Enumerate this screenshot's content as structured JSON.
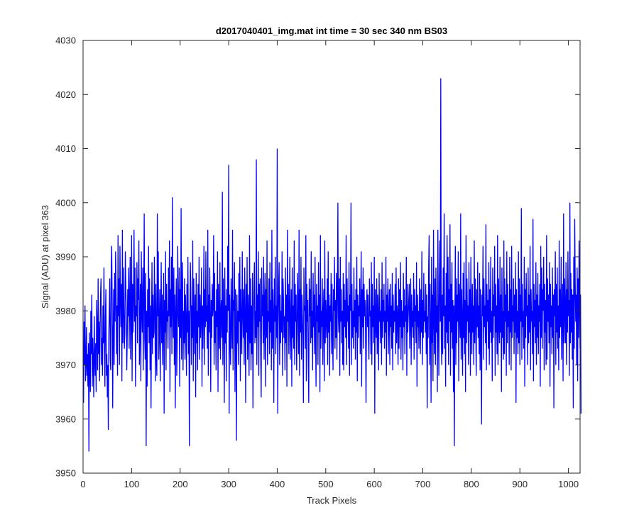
{
  "chart_data": {
    "type": "line",
    "title": "d2017040401_img.mat int time = 30 sec  340 nm BS03",
    "xlabel": "Track Pixels",
    "ylabel": "Signal (ADU) at pixel 363",
    "xlim": [
      0,
      1024
    ],
    "ylim": [
      3950,
      4030
    ],
    "xticks": [
      0,
      100,
      200,
      300,
      400,
      500,
      600,
      700,
      800,
      900,
      1000
    ],
    "yticks": [
      3950,
      3960,
      3970,
      3980,
      3990,
      4000,
      4010,
      4020,
      4030
    ],
    "grid": false,
    "series": [
      {
        "color": "#0000ff",
        "x_start": 1,
        "x_step": 1,
        "values": [
          3963,
          3978,
          3970,
          3981,
          3967,
          3970,
          3977,
          3968,
          3972,
          3966,
          3974,
          3954,
          3976,
          3969,
          3965,
          3980,
          3972,
          3983,
          3966,
          3975,
          3970,
          3964,
          3979,
          3971,
          3968,
          3974,
          3965,
          3982,
          3977,
          3969,
          3986,
          3972,
          3978,
          3967,
          3976,
          3983,
          3986,
          3970,
          3975,
          3968,
          3981,
          3974,
          3988,
          3973,
          3966,
          3979,
          3984,
          3968,
          3972,
          3964,
          3970,
          3958,
          3975,
          3980,
          3986,
          3971,
          3969,
          3988,
          3992,
          3981,
          3962,
          3975,
          3984,
          3970,
          3987,
          3978,
          3991,
          3985,
          3972,
          3981,
          3968,
          3994,
          3979,
          3986,
          3970,
          3992,
          3983,
          3977,
          3985,
          3967,
          3995,
          3974,
          3988,
          3981,
          3973,
          3976,
          3991,
          3985,
          3980,
          3969,
          3975,
          3984,
          3979,
          3988,
          3973,
          3982,
          3990,
          3971,
          3978,
          3994,
          3967,
          3985,
          3976,
          3983,
          3995,
          3978,
          3988,
          3966,
          3981,
          3979,
          3989,
          3974,
          3986,
          3982,
          3993,
          3970,
          3977,
          3985,
          3967,
          3991,
          3980,
          3976,
          3988,
          3969,
          3983,
          3998,
          3975,
          3971,
          3987,
          3955,
          3980,
          3966,
          3984,
          3977,
          3992,
          3974,
          3986,
          3969,
          3981,
          3962,
          3978,
          3989,
          3972,
          3983,
          3975,
          3976,
          3990,
          3980,
          3967,
          3985,
          3973,
          3968,
          3998,
          3979,
          3991,
          3971,
          3976,
          3984,
          3967,
          3980,
          3989,
          3974,
          3983,
          3970,
          3978,
          3987,
          3961,
          3982,
          3976,
          3991,
          3969,
          3985,
          3978,
          3980,
          3973,
          3988,
          3979,
          3993,
          3965,
          3984,
          3977,
          3990,
          3972,
          4001,
          3981,
          3975,
          3988,
          3970,
          3983,
          3962,
          3979,
          3986,
          3968,
          3974,
          3992,
          3980,
          3977,
          3988,
          3966,
          3984,
          3975,
          3999,
          3971,
          3982,
          3989,
          3969,
          3980,
          3974,
          3986,
          3971,
          3983,
          3978,
          3968,
          3985,
          3976,
          3990,
          3972,
          3980,
          3955,
          3978,
          3989,
          3984,
          3970,
          3981,
          3975,
          3993,
          3967,
          3986,
          3979,
          3972,
          3983,
          3964,
          3987,
          3974,
          3980,
          3969,
          3985,
          3977,
          3990,
          3971,
          3983,
          3975,
          3979,
          3988,
          3966,
          3981,
          3973,
          3980,
          3992,
          3970,
          3984,
          3977,
          3991,
          3978,
          3981,
          3973,
          3995,
          3968,
          3983,
          3976,
          3988,
          3979,
          3965,
          3982,
          3975,
          3985,
          3979,
          3981,
          3994,
          3970,
          3987,
          3974,
          3980,
          3969,
          3984,
          3977,
          3991,
          3965,
          3985,
          3978,
          3973,
          3989,
          3971,
          3980,
          3982,
          3975,
          4002,
          3970,
          3986,
          3979,
          3963,
          3988,
          3974,
          3981,
          3967,
          3984,
          3976,
          3992,
          3980,
          4007,
          3961,
          3983,
          3975,
          3970,
          3986,
          3978,
          3973,
          3995,
          3969,
          3982,
          3980,
          3989,
          3965,
          3984,
          3976,
          3956,
          3983,
          3974,
          3980,
          3970,
          3987,
          3978,
          3990,
          3967,
          3984,
          3977,
          3972,
          3991,
          3980,
          3975,
          3984,
          3970,
          3988,
          3979,
          3963,
          3985,
          3976,
          3990,
          3971,
          3983,
          3979,
          3968,
          3994,
          3974,
          3986,
          3969,
          3981,
          3972,
          3987,
          3962,
          3978,
          3984,
          3989,
          3974,
          3980,
          3975,
          4008,
          3970,
          3983,
          3977,
          3991,
          3968,
          3985,
          3978,
          3986,
          3972,
          3964,
          3988,
          3979,
          3983,
          3974,
          3990,
          3971,
          3981,
          3987,
          3966,
          3984,
          3975,
          3993,
          3970,
          3980,
          3978,
          3986,
          3972,
          3989,
          3976,
          3982,
          3969,
          3995,
          3973,
          3984,
          3979,
          3963,
          3986,
          3978,
          3990,
          3972,
          3981,
          3975,
          4010,
          3961,
          3977,
          3985,
          3989,
          3970,
          3983,
          3974,
          3980,
          3976,
          3991,
          3968,
          3986,
          3982,
          3975,
          3979,
          3969,
          3988,
          3974,
          3983,
          3966,
          3995,
          3978,
          3985,
          3972,
          3980,
          3990,
          3971,
          3977,
          3984,
          3966,
          3988,
          3975,
          3981,
          3973,
          3993,
          3970,
          3985,
          3978,
          3983,
          3969,
          3976,
          3987,
          3980,
          3972,
          3995,
          3968,
          3984,
          3976,
          3990,
          3971,
          3983,
          3979,
          3975,
          3963,
          3988,
          3980,
          3981,
          3973,
          3994,
          3967,
          3985,
          3978,
          3982,
          3970,
          3963,
          3986,
          3979,
          3984,
          3974,
          3991,
          3975,
          3980,
          3969,
          3987,
          3977,
          3983,
          3972,
          3990,
          3975,
          3966,
          3985,
          3978,
          3981,
          3970,
          3989,
          3976,
          3983,
          3965,
          3994,
          3973,
          3980,
          3977,
          3986,
          3970,
          3979,
          3984,
          3967,
          3993,
          3974,
          3982,
          3978,
          3975,
          3986,
          3970,
          3991,
          3976,
          3983,
          3968,
          3981,
          3978,
          3987,
          3972,
          3985,
          3976,
          3969,
          3984,
          3980,
          3990,
          3973,
          3982,
          3975,
          3987,
          3971,
          3983,
          4000,
          3979,
          3976,
          3986,
          3968,
          3990,
          3978,
          3984,
          3974,
          3980,
          3970,
          3987,
          3969,
          3985,
          3977,
          3982,
          3975,
          3994,
          3970,
          3986,
          3978,
          3981,
          3973,
          3989,
          3968,
          3983,
          3980,
          4000,
          3970,
          3985,
          3975,
          3980,
          3973,
          3988,
          3977,
          3982,
          3971,
          3984,
          3976,
          3990,
          3967,
          3983,
          3975,
          3981,
          3979,
          3986,
          3972,
          3980,
          3991,
          3966,
          3984,
          3977,
          3988,
          3973,
          3985,
          3979,
          3982,
          3976,
          3963,
          3981,
          3984,
          3977,
          3983,
          3975,
          3971,
          3986,
          3979,
          3980,
          3972,
          3989,
          3970,
          3985,
          3977,
          3981,
          3974,
          3990,
          3961,
          3984,
          3978,
          3975,
          3986,
          3972,
          3983,
          3979,
          3969,
          3987,
          3978,
          3980,
          3974,
          3984,
          3970,
          3989,
          3975,
          3982,
          3978,
          3985,
          3973,
          3980,
          3976,
          3990,
          3968,
          3983,
          3978,
          3986,
          3972,
          3979,
          3984,
          3970,
          3985,
          3977,
          3981,
          3973,
          3987,
          3969,
          3983,
          3976,
          3980,
          3978,
          3985,
          3972,
          3988,
          3974,
          3981,
          3979,
          3970,
          3986,
          3973,
          3984,
          3977,
          3989,
          3971,
          3982,
          3975,
          3980,
          3969,
          3987,
          3977,
          3984,
          3972,
          3981,
          3978,
          3990,
          3968,
          3985,
          3976,
          3979,
          3982,
          3985,
          3973,
          3978,
          3986,
          3970,
          3983,
          3977,
          3980,
          3975,
          3987,
          3971,
          3984,
          3978,
          3981,
          3974,
          3989,
          3966,
          3983,
          3977,
          3980,
          3973,
          3986,
          3979,
          3972,
          3984,
          3976,
          3991,
          3970,
          3982,
          3975,
          3987,
          3978,
          3980,
          3976,
          3985,
          3972,
          3983,
          3962,
          3979,
          3975,
          3988,
          3994,
          3970,
          3985,
          3977,
          3963,
          3990,
          3974,
          3983,
          3967,
          3995,
          3979,
          3972,
          3986,
          3970,
          3988,
          3976,
          3981,
          3965,
          3995,
          3979,
          3968,
          3985,
          3993,
          3978,
          4023,
          3975,
          3970,
          3983,
          3972,
          3988,
          3979,
          3998,
          3973,
          3981,
          3966,
          3987,
          3976,
          3994,
          3974,
          3990,
          3970,
          3984,
          3978,
          3996,
          3968,
          3985,
          3976,
          3989,
          3973,
          3982,
          3965,
          3981,
          3955,
          3979,
          3992,
          3970,
          3986,
          3974,
          3983,
          3978,
          3991,
          3967,
          3985,
          3980,
          3975,
          3998,
          3971,
          3984,
          3978,
          3968,
          3987,
          3975,
          3989,
          3972,
          3982,
          3965,
          3994,
          3974,
          3986,
          3978,
          3981,
          3970,
          3989,
          3976,
          3984,
          3968,
          3990,
          3978,
          3972,
          3985,
          3976,
          3981,
          3970,
          3993,
          3974,
          3986,
          3979,
          3968,
          3984,
          3977,
          3989,
          3975,
          3981,
          3972,
          3987,
          3969,
          3984,
          3976,
          3959,
          3983,
          3979,
          3992,
          3971,
          3986,
          3977,
          3981,
          3974,
          3996,
          3969,
          3985,
          3978,
          3982,
          3973,
          3989,
          3970,
          3984,
          3976,
          3990,
          3974,
          3980,
          3967,
          3988,
          3975,
          3983,
          3979,
          3992,
          3968,
          3985,
          3976,
          3981,
          3972,
          3994,
          3970,
          3986,
          3978,
          3974,
          3990,
          3976,
          3983,
          3965,
          3988,
          3975,
          3980,
          3971,
          3993,
          3972,
          3986,
          3978,
          3983,
          3968,
          3991,
          3974,
          3985,
          3977,
          3980,
          3970,
          3990,
          3976,
          3984,
          3969,
          3992,
          3975,
          3981,
          3978,
          3986,
          3972,
          3983,
          3976,
          3989,
          3963,
          3984,
          3975,
          3980,
          3972,
          3991,
          3974,
          3986,
          3970,
          3983,
          3978,
          3999,
          3971,
          3985,
          3977,
          3980,
          3973,
          3990,
          3966,
          3984,
          3975,
          3987,
          3979,
          3981,
          3970,
          3988,
          3974,
          3983,
          3976,
          3992,
          3969,
          3984,
          3978,
          3980,
          3972,
          3997,
          3967,
          3985,
          3977,
          3982,
          3974,
          3989,
          3970,
          3983,
          3975,
          3987,
          3972,
          3981,
          3978,
          3985,
          3966,
          3992,
          3975,
          3988,
          3973,
          3984,
          3980,
          3990,
          3969,
          3985,
          3976,
          3982,
          3970,
          3994,
          3971,
          3986,
          3978,
          3983,
          3974,
          3989,
          3966,
          3985,
          3977,
          3981,
          3972,
          3988,
          3975,
          3983,
          3962,
          3984,
          3979,
          3991,
          3970,
          3985,
          3976,
          3988,
          3973,
          3981,
          3969,
          3993,
          3975,
          3984,
          3977,
          3990,
          3971,
          3980,
          3985,
          3967,
          3998,
          3974,
          3986,
          3980,
          3974,
          3989,
          3970,
          3984,
          3976,
          3991,
          3979,
          3982,
          3968,
          4000,
          3974,
          3987,
          3976,
          3984,
          3971,
          3983,
          3962,
          3990,
          3973,
          3997,
          3985,
          3978,
          3983,
          3970,
          3988,
          3967,
          3986,
          3975,
          3993,
          3980,
          3973,
          3983,
          3961
        ]
      }
    ]
  }
}
